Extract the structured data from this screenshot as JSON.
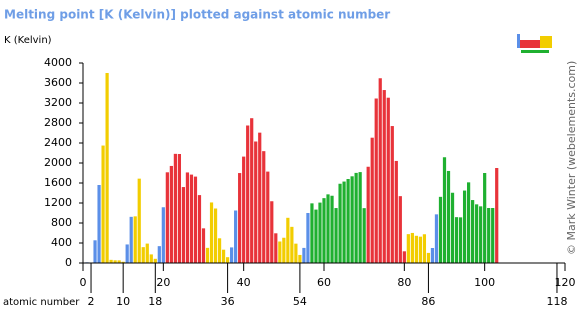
{
  "chart_data": {
    "type": "bar",
    "title": "Melting point [K (Kelvin)] plotted against atomic number",
    "y_label": "K (Kelvin)",
    "x_label": "atomic number",
    "credit": "© Mark Winter (webelements.com)",
    "x": [
      1,
      2,
      3,
      4,
      5,
      6,
      7,
      8,
      9,
      10,
      11,
      12,
      13,
      14,
      15,
      16,
      17,
      18,
      19,
      20,
      21,
      22,
      23,
      24,
      25,
      26,
      27,
      28,
      29,
      30,
      31,
      32,
      33,
      34,
      35,
      36,
      37,
      38,
      39,
      40,
      41,
      42,
      43,
      44,
      45,
      46,
      47,
      48,
      49,
      50,
      51,
      52,
      53,
      54,
      55,
      56,
      57,
      58,
      59,
      60,
      61,
      62,
      63,
      64,
      65,
      66,
      67,
      68,
      69,
      70,
      71,
      72,
      73,
      74,
      75,
      76,
      77,
      78,
      79,
      80,
      81,
      82,
      83,
      84,
      85,
      86,
      87,
      88,
      89,
      90,
      91,
      92,
      93,
      94,
      95,
      96,
      97,
      98,
      99,
      100,
      101,
      102,
      103
    ],
    "values": [
      14,
      1,
      454,
      1560,
      2349,
      3800,
      63,
      54,
      53,
      25,
      371,
      923,
      933,
      1687,
      317,
      388,
      172,
      84,
      337,
      1115,
      1814,
      1941,
      2183,
      2180,
      1519,
      1811,
      1768,
      1728,
      1358,
      693,
      303,
      1211,
      1090,
      494,
      266,
      116,
      312,
      1050,
      1799,
      2128,
      2750,
      2896,
      2430,
      2607,
      2237,
      1828,
      1235,
      594,
      430,
      505,
      904,
      723,
      387,
      161,
      302,
      1000,
      1193,
      1068,
      1208,
      1297,
      1373,
      1345,
      1099,
      1585,
      1629,
      1680,
      1734,
      1802,
      1818,
      1097,
      1925,
      2506,
      3290,
      3695,
      3459,
      3306,
      2739,
      2041,
      1337,
      234,
      577,
      601,
      544,
      527,
      575,
      202,
      300,
      973,
      1323,
      2115,
      1841,
      1405,
      917,
      913,
      1449,
      1613,
      1259,
      1173,
      1133,
      1800,
      1100,
      1100,
      1900
    ],
    "colors": [
      "#5b8fe8",
      "#5b8fe8",
      "#5b8fe8",
      "#5b8fe8",
      "#f2cd00",
      "#f2cd00",
      "#f2cd00",
      "#f2cd00",
      "#f2cd00",
      "#f2cd00",
      "#5b8fe8",
      "#5b8fe8",
      "#f2cd00",
      "#f2cd00",
      "#f2cd00",
      "#f2cd00",
      "#f2cd00",
      "#f2cd00",
      "#5b8fe8",
      "#5b8fe8",
      "#e8333a",
      "#e8333a",
      "#e8333a",
      "#e8333a",
      "#e8333a",
      "#e8333a",
      "#e8333a",
      "#e8333a",
      "#e8333a",
      "#e8333a",
      "#f2cd00",
      "#f2cd00",
      "#f2cd00",
      "#f2cd00",
      "#f2cd00",
      "#f2cd00",
      "#5b8fe8",
      "#5b8fe8",
      "#e8333a",
      "#e8333a",
      "#e8333a",
      "#e8333a",
      "#e8333a",
      "#e8333a",
      "#e8333a",
      "#e8333a",
      "#e8333a",
      "#e8333a",
      "#f2cd00",
      "#f2cd00",
      "#f2cd00",
      "#f2cd00",
      "#f2cd00",
      "#f2cd00",
      "#5b8fe8",
      "#5b8fe8",
      "#1fb030",
      "#1fb030",
      "#1fb030",
      "#1fb030",
      "#1fb030",
      "#1fb030",
      "#1fb030",
      "#1fb030",
      "#1fb030",
      "#1fb030",
      "#1fb030",
      "#1fb030",
      "#1fb030",
      "#1fb030",
      "#e8333a",
      "#e8333a",
      "#e8333a",
      "#e8333a",
      "#e8333a",
      "#e8333a",
      "#e8333a",
      "#e8333a",
      "#e8333a",
      "#e8333a",
      "#f2cd00",
      "#f2cd00",
      "#f2cd00",
      "#f2cd00",
      "#f2cd00",
      "#f2cd00",
      "#5b8fe8",
      "#5b8fe8",
      "#1fb030",
      "#1fb030",
      "#1fb030",
      "#1fb030",
      "#1fb030",
      "#1fb030",
      "#1fb030",
      "#1fb030",
      "#1fb030",
      "#1fb030",
      "#1fb030",
      "#1fb030",
      "#1fb030",
      "#1fb030",
      "#e8333a"
    ],
    "xlim": [
      0,
      120
    ],
    "ylim": [
      0,
      4000
    ],
    "xticks": [
      0,
      20,
      40,
      60,
      80,
      100,
      120
    ],
    "xticks_secondary": [
      2,
      10,
      18,
      36,
      54,
      86,
      118
    ],
    "yticks": [
      0,
      400,
      800,
      1200,
      1600,
      2000,
      2400,
      2800,
      3200,
      3600,
      4000
    ]
  }
}
